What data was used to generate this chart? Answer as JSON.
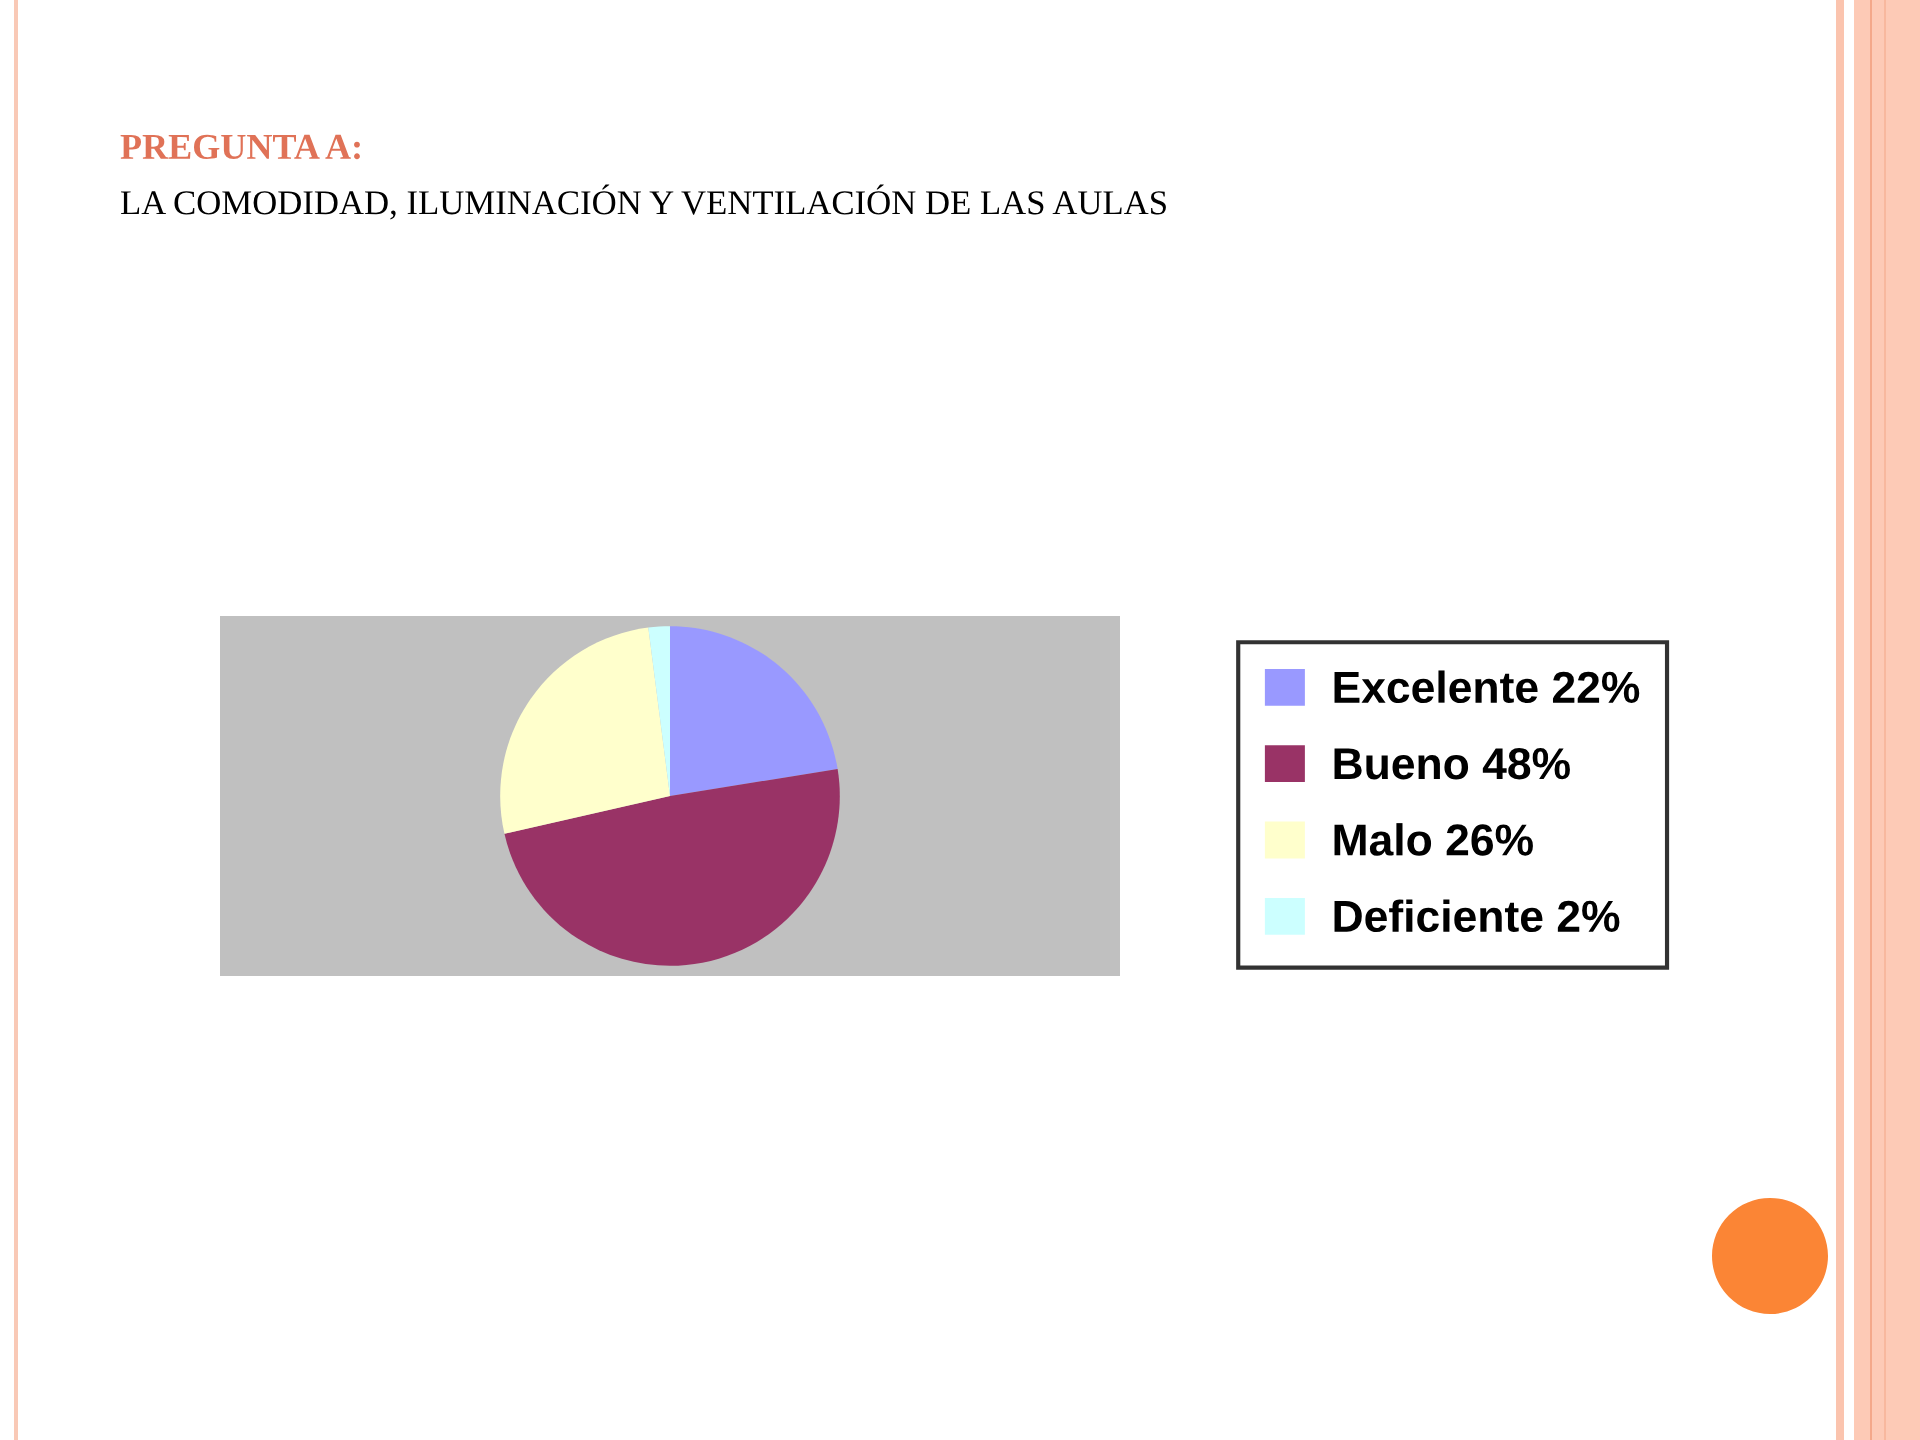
{
  "chart_data": {
    "type": "pie",
    "title": "PREGUNTA A:",
    "subtitle": "LA COMODIDAD, ILUMINACIÓN Y VENTILACIÓN DE LAS AULAS",
    "categories": [
      "Excelente 22%",
      "Bueno 48%",
      "Malo 26%",
      "Deficiente 2%"
    ],
    "values": [
      22,
      48,
      26,
      2
    ],
    "colors": [
      "#9999ff",
      "#993366",
      "#ffffcc",
      "#ccffff"
    ],
    "legend": "right"
  }
}
